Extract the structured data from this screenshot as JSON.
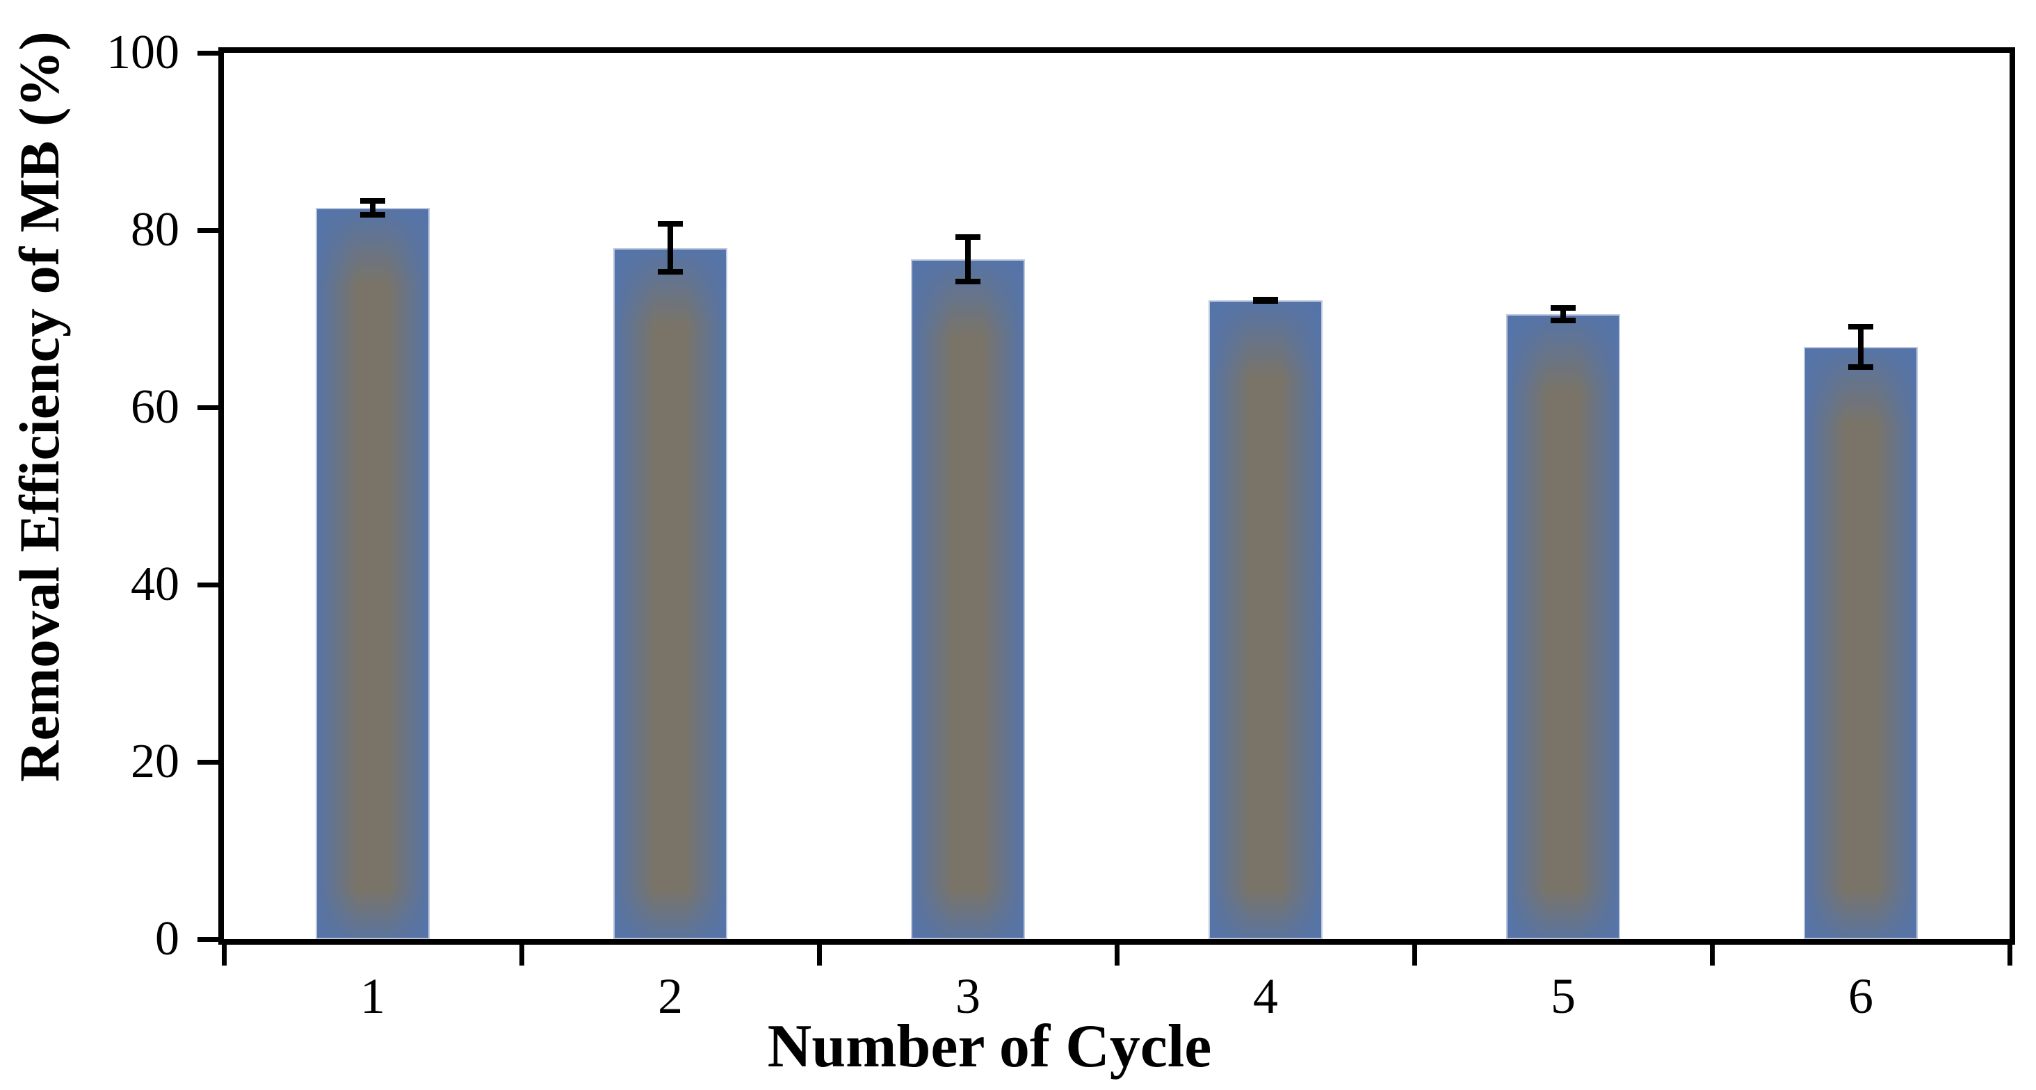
{
  "figure": {
    "background": "#ffffff"
  },
  "chart_data": {
    "type": "bar",
    "title": "",
    "xlabel": "Number of Cycle",
    "ylabel": "Removal Efficiency of MB (%)",
    "categories": [
      "1",
      "2",
      "3",
      "4",
      "5",
      "6"
    ],
    "values": [
      82.5,
      78.0,
      76.7,
      72.1,
      70.5,
      66.8
    ],
    "error_bars": [
      1.1,
      3.0,
      2.8,
      0.4,
      1.0,
      2.6
    ],
    "ylim": [
      0,
      100
    ],
    "yticks": [
      0,
      20,
      40,
      60,
      80,
      100
    ],
    "grid": false,
    "legend": null,
    "layout_hints": {
      "plot_frame": "full box border",
      "tick_style": "outside"
    },
    "colors": {
      "bar_center": "#7a7468",
      "bar_edge": "#5474aa",
      "bar_outline": "#bdc8df",
      "axis": "#000000",
      "error_bar": "#000000",
      "text": "#000000"
    }
  }
}
